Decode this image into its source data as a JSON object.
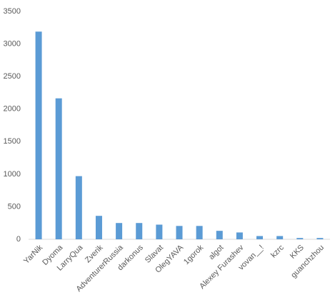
{
  "chart_data": {
    "type": "bar",
    "categories": [
      "YarNik",
      "Dyoma",
      "LarryQua",
      "Zverik",
      "AdventurerRussia",
      "darkonus",
      "Slavat",
      "OlegYAVA",
      "1gorok",
      "algot",
      "Alexey Furashev",
      "vovan__!",
      "kzrc",
      "KKS",
      "guanchzhou"
    ],
    "values": [
      3190,
      2165,
      970,
      360,
      250,
      250,
      225,
      205,
      205,
      130,
      105,
      50,
      50,
      20,
      20
    ],
    "color": "#5b9bd5",
    "ylim": [
      0,
      3500
    ],
    "yticks": [
      0,
      500,
      1000,
      1500,
      2000,
      2500,
      3000,
      3500
    ],
    "grid": false
  }
}
